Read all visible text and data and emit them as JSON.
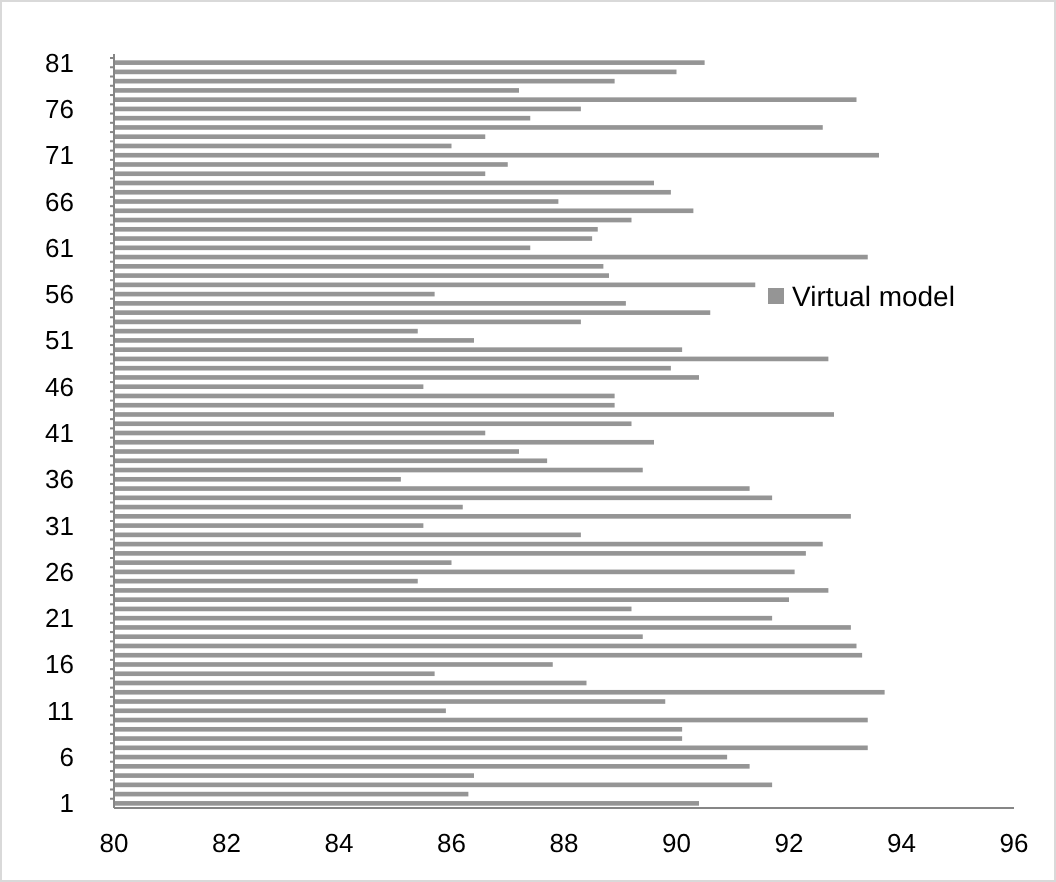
{
  "chart_data": {
    "type": "bar",
    "orientation": "horizontal",
    "categories": [
      "81",
      null,
      null,
      null,
      null,
      "76",
      null,
      null,
      null,
      null,
      "71",
      null,
      null,
      null,
      null,
      "66",
      null,
      null,
      null,
      null,
      "61",
      null,
      null,
      null,
      null,
      "56",
      null,
      null,
      null,
      null,
      "51",
      null,
      null,
      null,
      null,
      "46",
      null,
      null,
      null,
      null,
      "41",
      null,
      null,
      null,
      null,
      "36",
      null,
      null,
      null,
      null,
      "31",
      null,
      null,
      null,
      null,
      "26",
      null,
      null,
      null,
      null,
      "21",
      null,
      null,
      null,
      null,
      "16",
      null,
      null,
      null,
      null,
      "11",
      null,
      null,
      null,
      null,
      "6",
      null,
      null,
      null,
      null,
      "1"
    ],
    "series": [
      {
        "name": "Virtual model",
        "color": "#959595",
        "values": [
          90.5,
          90.0,
          88.9,
          87.2,
          93.2,
          88.3,
          87.4,
          92.6,
          86.6,
          86.0,
          93.6,
          87.0,
          86.6,
          89.6,
          89.9,
          87.9,
          90.3,
          89.2,
          88.6,
          88.5,
          87.4,
          93.4,
          88.7,
          88.8,
          91.4,
          85.7,
          89.1,
          90.6,
          88.3,
          85.4,
          86.4,
          90.1,
          92.7,
          89.9,
          90.4,
          85.5,
          88.9,
          88.9,
          92.8,
          89.2,
          86.6,
          89.6,
          87.2,
          87.7,
          89.4,
          85.1,
          91.3,
          91.7,
          86.2,
          93.1,
          85.5,
          88.3,
          92.6,
          92.3,
          86.0,
          92.1,
          85.4,
          92.7,
          92.0,
          89.2,
          91.7,
          93.1,
          89.4,
          93.2,
          93.3,
          87.8,
          85.7,
          88.4,
          93.7,
          89.8,
          85.9,
          93.4,
          90.1,
          90.1,
          93.4,
          90.9,
          91.3,
          86.4,
          91.7,
          86.3,
          90.4
        ]
      }
    ],
    "xlim": [
      80,
      96
    ],
    "xticks": [
      80,
      82,
      84,
      86,
      88,
      90,
      92,
      94,
      96
    ],
    "legend": "right",
    "grid": false
  }
}
